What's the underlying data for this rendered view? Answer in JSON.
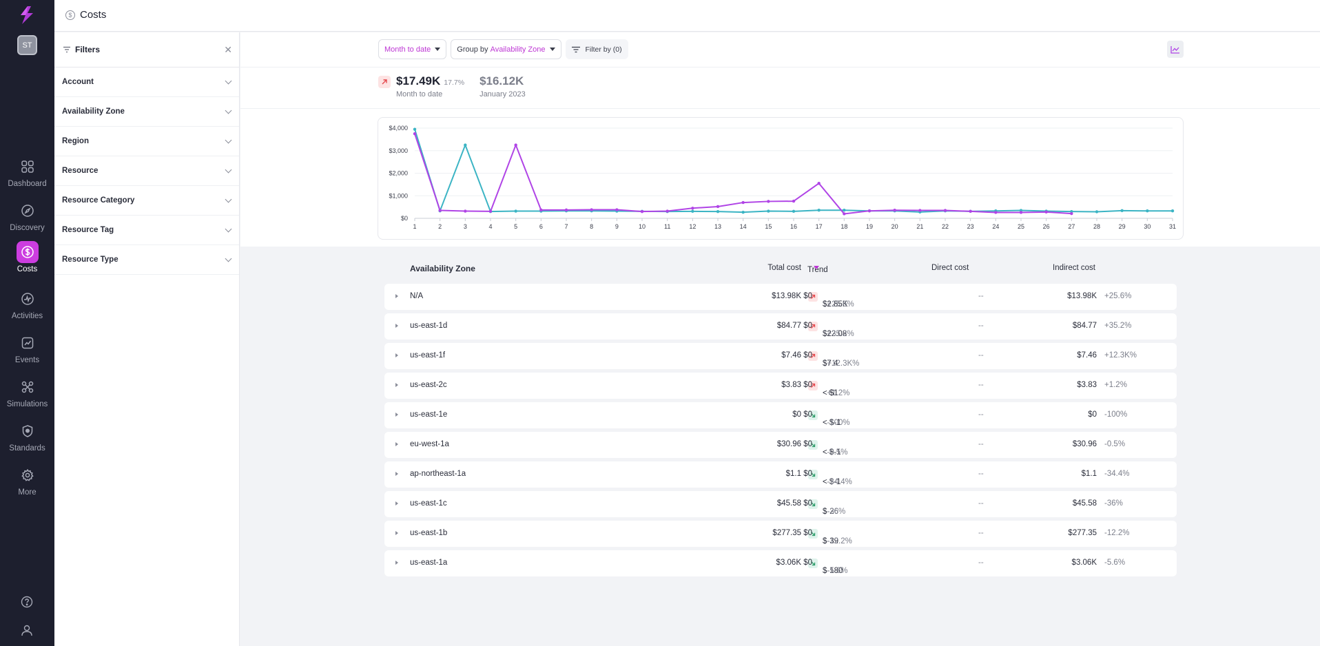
{
  "app": {
    "title": "Costs",
    "user_initials": "ST"
  },
  "nav": [
    {
      "label": "Dashboard",
      "icon": "dashboard-icon",
      "active": false
    },
    {
      "label": "Discovery",
      "icon": "compass-icon",
      "active": false
    },
    {
      "label": "Costs",
      "icon": "dollar-icon",
      "active": true
    },
    {
      "label": "Activities",
      "icon": "activity-icon",
      "active": false
    },
    {
      "label": "Events",
      "icon": "events-icon",
      "active": false
    },
    {
      "label": "Simulations",
      "icon": "simulations-icon",
      "active": false
    },
    {
      "label": "Standards",
      "icon": "shield-icon",
      "active": false
    },
    {
      "label": "More",
      "icon": "gear-icon",
      "active": false
    }
  ],
  "filters": {
    "title": "Filters",
    "facets": [
      "Account",
      "Availability Zone",
      "Region",
      "Resource",
      "Resource Category",
      "Resource Tag",
      "Resource Type"
    ]
  },
  "toolbar": {
    "period": "Month to date",
    "group_prefix": "Group by",
    "group_value": "Availability Zone",
    "filter_label": "Filter by (0)"
  },
  "summary": {
    "current_value": "$17.49K",
    "current_pct": "17.7%",
    "current_label": "Month to date",
    "previous_value": "$16.12K",
    "previous_label": "January 2023"
  },
  "colors": {
    "accent": "#bd36d4",
    "series_current": "#b044e6",
    "series_previous": "#3bb4c4",
    "up": "#e5484d",
    "down": "#2e9e6a"
  },
  "chart_data": {
    "type": "line",
    "x": [
      1,
      2,
      3,
      4,
      5,
      6,
      7,
      8,
      9,
      10,
      11,
      12,
      13,
      14,
      15,
      16,
      17,
      18,
      19,
      20,
      21,
      22,
      23,
      24,
      25,
      26,
      27,
      28,
      29,
      30,
      31
    ],
    "yticks": [
      "$0",
      "$1,000",
      "$2,000",
      "$3,000",
      "$4,000"
    ],
    "ylim": [
      0,
      4000
    ],
    "grid": true,
    "series": [
      {
        "values": [
          3950,
          330,
          3250,
          300,
          320,
          320,
          330,
          330,
          320,
          310,
          300,
          310,
          300,
          270,
          320,
          310,
          360,
          360,
          330,
          330,
          280,
          330,
          310,
          330,
          350,
          320,
          300,
          290,
          340,
          330,
          330
        ]
      },
      {
        "values": [
          3750,
          350,
          320,
          310,
          3250,
          370,
          370,
          380,
          380,
          300,
          320,
          450,
          520,
          700,
          750,
          760,
          1550,
          200,
          330,
          360,
          350,
          350,
          310,
          260,
          260,
          280,
          210,
          null,
          null,
          null,
          null
        ]
      }
    ]
  },
  "table": {
    "headers": {
      "zone": "Availability Zone",
      "total": "Total cost",
      "trend": "Trend",
      "direct": "Direct cost",
      "indirect": "Indirect cost"
    },
    "rows": [
      {
        "zone": "N/A",
        "total": "$13.98K",
        "dir": "up",
        "trend": "$2.85K",
        "pct": "+25.6%",
        "direct": "$0",
        "dash": "--",
        "indirect": "$13.98K",
        "ipct": "+25.6%"
      },
      {
        "zone": "us-east-1d",
        "total": "$84.77",
        "dir": "up",
        "trend": "$22.08",
        "pct": "+35.2%",
        "direct": "$0",
        "dash": "--",
        "indirect": "$84.77",
        "ipct": "+35.2%"
      },
      {
        "zone": "us-east-1f",
        "total": "$7.46",
        "dir": "up",
        "trend": "$7.4",
        "pct": "+12.3K%",
        "direct": "$0",
        "dash": "--",
        "indirect": "$7.46",
        "ipct": "+12.3K%"
      },
      {
        "zone": "us-east-2c",
        "total": "$3.83",
        "dir": "up",
        "trend": "< $1",
        "pct": "+1.2%",
        "direct": "$0",
        "dash": "--",
        "indirect": "$3.83",
        "ipct": "+1.2%"
      },
      {
        "zone": "us-east-1e",
        "total": "$0",
        "dir": "down",
        "trend": "< $-1",
        "pct": "-100%",
        "direct": "$0",
        "dash": "--",
        "indirect": "$0",
        "ipct": "-100%"
      },
      {
        "zone": "eu-west-1a",
        "total": "$30.96",
        "dir": "down",
        "trend": "< $-1",
        "pct": "-0.5%",
        "direct": "$0",
        "dash": "--",
        "indirect": "$30.96",
        "ipct": "-0.5%"
      },
      {
        "zone": "ap-northeast-1a",
        "total": "$1.1",
        "dir": "down",
        "trend": "< $-1",
        "pct": "-34.4%",
        "direct": "$0",
        "dash": "--",
        "indirect": "$1.1",
        "ipct": "-34.4%"
      },
      {
        "zone": "us-east-1c",
        "total": "$45.58",
        "dir": "down",
        "trend": "$-26",
        "pct": "-36%",
        "direct": "$0",
        "dash": "--",
        "indirect": "$45.58",
        "ipct": "-36%"
      },
      {
        "zone": "us-east-1b",
        "total": "$277.35",
        "dir": "down",
        "trend": "$-39",
        "pct": "-12.2%",
        "direct": "$0",
        "dash": "--",
        "indirect": "$277.35",
        "ipct": "-12.2%"
      },
      {
        "zone": "us-east-1a",
        "total": "$3.06K",
        "dir": "down",
        "trend": "$-180",
        "pct": "-5.6%",
        "direct": "$0",
        "dash": "--",
        "indirect": "$3.06K",
        "ipct": "-5.6%"
      }
    ]
  }
}
